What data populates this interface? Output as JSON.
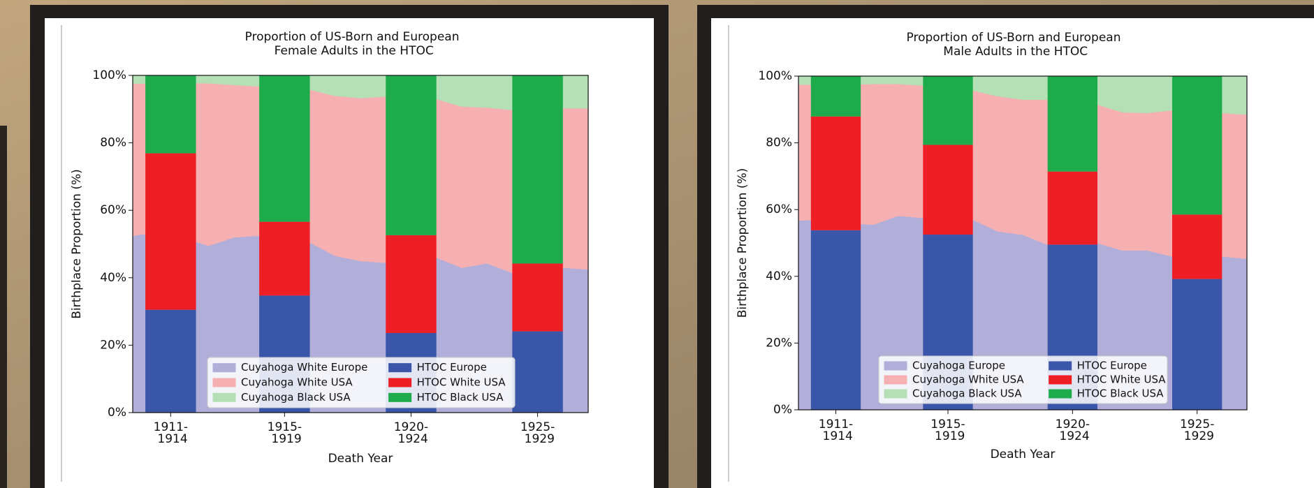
{
  "chart_data": [
    {
      "type": "combo",
      "title": "Proportion of US-Born and European\nFemale Adults in the HTOC",
      "x_label": "Death Year",
      "y_label": "Birthplace Proportion (%)",
      "x": [
        1911,
        1912,
        1913,
        1914,
        1915,
        1916,
        1917,
        1918,
        1919,
        1920,
        1921,
        1922,
        1923,
        1924,
        1925,
        1926,
        1927,
        1928,
        1929
      ],
      "xlim": [
        1911,
        1929
      ],
      "xticks": [
        {
          "value": 1912.5,
          "label": "1911-\n1914"
        },
        {
          "value": 1917,
          "label": "1915-\n1919"
        },
        {
          "value": 1922,
          "label": "1920-\n1924"
        },
        {
          "value": 1927,
          "label": "1925-\n1929"
        }
      ],
      "ylim": [
        0,
        100
      ],
      "yticks": [
        {
          "value": 0,
          "label": "0%"
        },
        {
          "value": 20,
          "label": "20%"
        },
        {
          "value": 40,
          "label": "40%"
        },
        {
          "value": 60,
          "label": "60%"
        },
        {
          "value": 80,
          "label": "80%"
        },
        {
          "value": 100,
          "label": "100%"
        }
      ],
      "legend": "lower center",
      "series": [
        {
          "name": "Cuyahoga White Europe",
          "color": "#b1afd9",
          "values": [
            52.5,
            53.5,
            52,
            49.5,
            52,
            52.5,
            52,
            50.5,
            46.5,
            45,
            44.5,
            45,
            46,
            43,
            44.3,
            41.5,
            42.5,
            43,
            42.5
          ]
        },
        {
          "name": "Cuyahoga White USA",
          "color": "#f6b0b1",
          "values": [
            45.1,
            44.2,
            45.8,
            48.2,
            45.2,
            44.3,
            44,
            45.3,
            47.5,
            48.3,
            49.3,
            48.5,
            47,
            47.8,
            46.2,
            48.3,
            47.5,
            47.3,
            47.8
          ]
        },
        {
          "name": "Cuyahoga Black USA",
          "color": "#b5dfb4",
          "values": [
            2.4,
            2.3,
            2.2,
            2.3,
            2.8,
            3.2,
            4,
            4.2,
            6,
            6.7,
            6.2,
            6.5,
            7,
            9.2,
            9.5,
            10.2,
            10,
            9.7,
            9.7
          ]
        }
      ],
      "bar_series": [
        {
          "name": "HTOC Europe",
          "color": "#3a56a8",
          "values": [
            30.5,
            34.7,
            23.6,
            24.1
          ]
        },
        {
          "name": "HTOC White USA",
          "color": "#ee1e25",
          "values": [
            46.4,
            21.9,
            29,
            20.1
          ]
        },
        {
          "name": "HTOC Black USA",
          "color": "#1dab4b",
          "values": [
            23.1,
            43.4,
            47.4,
            55.8
          ]
        }
      ]
    },
    {
      "type": "combo",
      "title": "Proportion of US-Born and European\nMale Adults in the HTOC",
      "x_label": "Death Year",
      "y_label": "Birthplace Proportion (%)",
      "x": [
        1911,
        1912,
        1913,
        1914,
        1915,
        1916,
        1917,
        1918,
        1919,
        1920,
        1921,
        1922,
        1923,
        1924,
        1925,
        1926,
        1927,
        1928,
        1929
      ],
      "xlim": [
        1911,
        1929
      ],
      "xticks": [
        {
          "value": 1912.5,
          "label": "1911-\n1914"
        },
        {
          "value": 1917,
          "label": "1915-\n1919"
        },
        {
          "value": 1922,
          "label": "1920-\n1924"
        },
        {
          "value": 1927,
          "label": "1925-\n1929"
        }
      ],
      "ylim": [
        0,
        100
      ],
      "yticks": [
        {
          "value": 0,
          "label": "0%"
        },
        {
          "value": 20,
          "label": "20%"
        },
        {
          "value": 40,
          "label": "40%"
        },
        {
          "value": 60,
          "label": "60%"
        },
        {
          "value": 80,
          "label": "80%"
        },
        {
          "value": 100,
          "label": "100%"
        }
      ],
      "legend": "lower center",
      "series": [
        {
          "name": "Cuyahoga Europe",
          "color": "#b1afd9",
          "values": [
            56.8,
            57,
            56,
            55.5,
            58.2,
            57.5,
            56,
            57,
            53.5,
            52.5,
            49.5,
            49.5,
            50,
            47.8,
            47.8,
            46,
            45.5,
            46,
            45.3
          ]
        },
        {
          "name": "Cuyahoga White USA",
          "color": "#f6b0b1",
          "values": [
            40.7,
            40.5,
            41.5,
            42.2,
            39.5,
            39.7,
            40.5,
            38.7,
            40.5,
            40.5,
            43.5,
            43,
            41.5,
            41.4,
            41.2,
            43.8,
            44,
            43,
            43.2
          ]
        },
        {
          "name": "Cuyahoga Black USA",
          "color": "#b5dfb4",
          "values": [
            2.5,
            2.5,
            2.5,
            2.3,
            2.3,
            2.8,
            3.5,
            4.3,
            6,
            7,
            7,
            7.5,
            8.5,
            10.8,
            11,
            10.2,
            10.5,
            11,
            11.5
          ]
        }
      ],
      "bar_series": [
        {
          "name": "HTOC Europe",
          "color": "#3a56a8",
          "values": [
            53.8,
            52.5,
            49.5,
            39.2
          ]
        },
        {
          "name": "HTOC White USA",
          "color": "#ee1e25",
          "values": [
            34.1,
            26.9,
            21.9,
            19.3
          ]
        },
        {
          "name": "HTOC Black USA",
          "color": "#1dab4b",
          "values": [
            12.1,
            20.6,
            28.6,
            41.5
          ]
        }
      ]
    }
  ]
}
